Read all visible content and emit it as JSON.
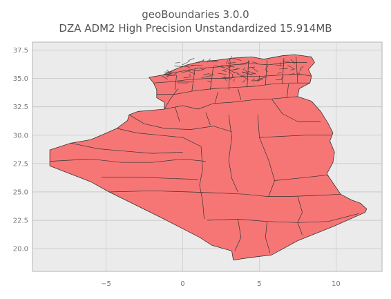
{
  "title_line1": "geoBoundaries 3.0.0",
  "title_line2": "DZA ADM2 High Precision Unstandardized 15.914MB",
  "colors": {
    "plot_bg": "#ebebeb",
    "grid": "#ffffff",
    "frame": "#bdbdbd",
    "fill": "#f67676",
    "edge": "#333333"
  },
  "chart_data": {
    "type": "map",
    "xlim": [
      -9.8,
      13.0
    ],
    "ylim": [
      18.0,
      38.2
    ],
    "x_ticks": [
      -5,
      0,
      5,
      10
    ],
    "y_ticks": [
      20.0,
      22.5,
      25.0,
      27.5,
      30.0,
      32.5,
      35.0,
      37.5
    ],
    "x_tick_labels": [
      "−5",
      "0",
      "5",
      "10"
    ],
    "y_tick_labels": [
      "20.0",
      "22.5",
      "25.0",
      "27.5",
      "30.0",
      "32.5",
      "35.0",
      "37.5"
    ],
    "grid": true,
    "outline": [
      [
        -8.67,
        27.29
      ],
      [
        -8.67,
        28.7
      ],
      [
        -7.3,
        29.3
      ],
      [
        -6.0,
        29.6
      ],
      [
        -5.3,
        30.0
      ],
      [
        -4.3,
        30.6
      ],
      [
        -3.6,
        31.3
      ],
      [
        -3.5,
        31.8
      ],
      [
        -2.9,
        32.1
      ],
      [
        -2.0,
        32.2
      ],
      [
        -1.2,
        32.3
      ],
      [
        -1.2,
        32.9
      ],
      [
        -1.7,
        33.3
      ],
      [
        -1.7,
        34.0
      ],
      [
        -1.9,
        34.6
      ],
      [
        -2.2,
        35.1
      ],
      [
        -1.3,
        35.3
      ],
      [
        -0.5,
        35.8
      ],
      [
        0.3,
        36.2
      ],
      [
        1.2,
        36.5
      ],
      [
        2.2,
        36.6
      ],
      [
        3.3,
        36.8
      ],
      [
        4.5,
        36.9
      ],
      [
        5.3,
        36.7
      ],
      [
        6.5,
        37.0
      ],
      [
        7.3,
        37.1
      ],
      [
        8.4,
        36.9
      ],
      [
        8.6,
        36.4
      ],
      [
        8.2,
        35.8
      ],
      [
        8.4,
        35.2
      ],
      [
        8.3,
        34.6
      ],
      [
        7.6,
        34.1
      ],
      [
        7.5,
        33.4
      ],
      [
        8.4,
        33.0
      ],
      [
        9.0,
        32.1
      ],
      [
        9.5,
        31.0
      ],
      [
        9.8,
        30.2
      ],
      [
        9.6,
        29.5
      ],
      [
        9.9,
        28.5
      ],
      [
        9.8,
        27.6
      ],
      [
        9.4,
        26.6
      ],
      [
        10.0,
        25.4
      ],
      [
        10.3,
        24.8
      ],
      [
        11.0,
        24.3
      ],
      [
        11.6,
        24.0
      ],
      [
        12.0,
        23.5
      ],
      [
        11.9,
        23.2
      ],
      [
        9.9,
        22.0
      ],
      [
        7.5,
        20.7
      ],
      [
        5.8,
        19.45
      ],
      [
        4.3,
        19.2
      ],
      [
        3.3,
        19.0
      ],
      [
        3.2,
        19.8
      ],
      [
        1.9,
        20.3
      ],
      [
        1.1,
        21.0
      ],
      [
        -1.5,
        22.8
      ],
      [
        -4.8,
        25.0
      ],
      [
        -6.0,
        25.9
      ],
      [
        -8.67,
        27.29
      ]
    ]
  }
}
